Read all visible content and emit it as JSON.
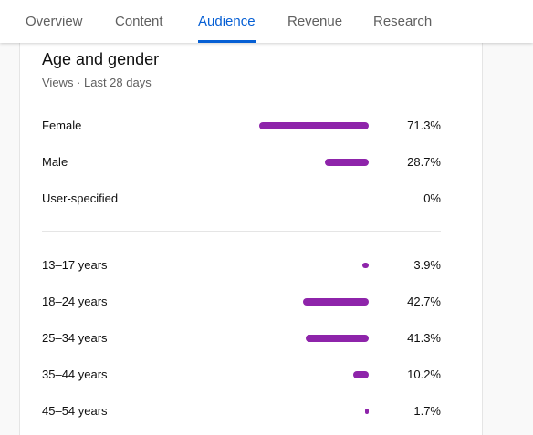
{
  "tabs": [
    {
      "label": "Overview",
      "active": false
    },
    {
      "label": "Content",
      "active": false
    },
    {
      "label": "Audience",
      "active": true
    },
    {
      "label": "Revenue",
      "active": false
    },
    {
      "label": "Research",
      "active": false
    }
  ],
  "card": {
    "title": "Age and gender",
    "subtitle": "Views · Last 28 days"
  },
  "gender": [
    {
      "label": "Female",
      "value": "71.3%",
      "percent": 71.3
    },
    {
      "label": "Male",
      "value": "28.7%",
      "percent": 28.7
    },
    {
      "label": "User-specified",
      "value": "0%",
      "percent": 0
    }
  ],
  "age": [
    {
      "label": "13–17 years",
      "value": "3.9%",
      "percent": 3.9
    },
    {
      "label": "18–24 years",
      "value": "42.7%",
      "percent": 42.7
    },
    {
      "label": "25–34 years",
      "value": "41.3%",
      "percent": 41.3
    },
    {
      "label": "35–44 years",
      "value": "10.2%",
      "percent": 10.2
    },
    {
      "label": "45–54 years",
      "value": "1.7%",
      "percent": 1.7
    }
  ],
  "colors": {
    "accent": "#065fd4",
    "bar": "#8e24aa"
  }
}
